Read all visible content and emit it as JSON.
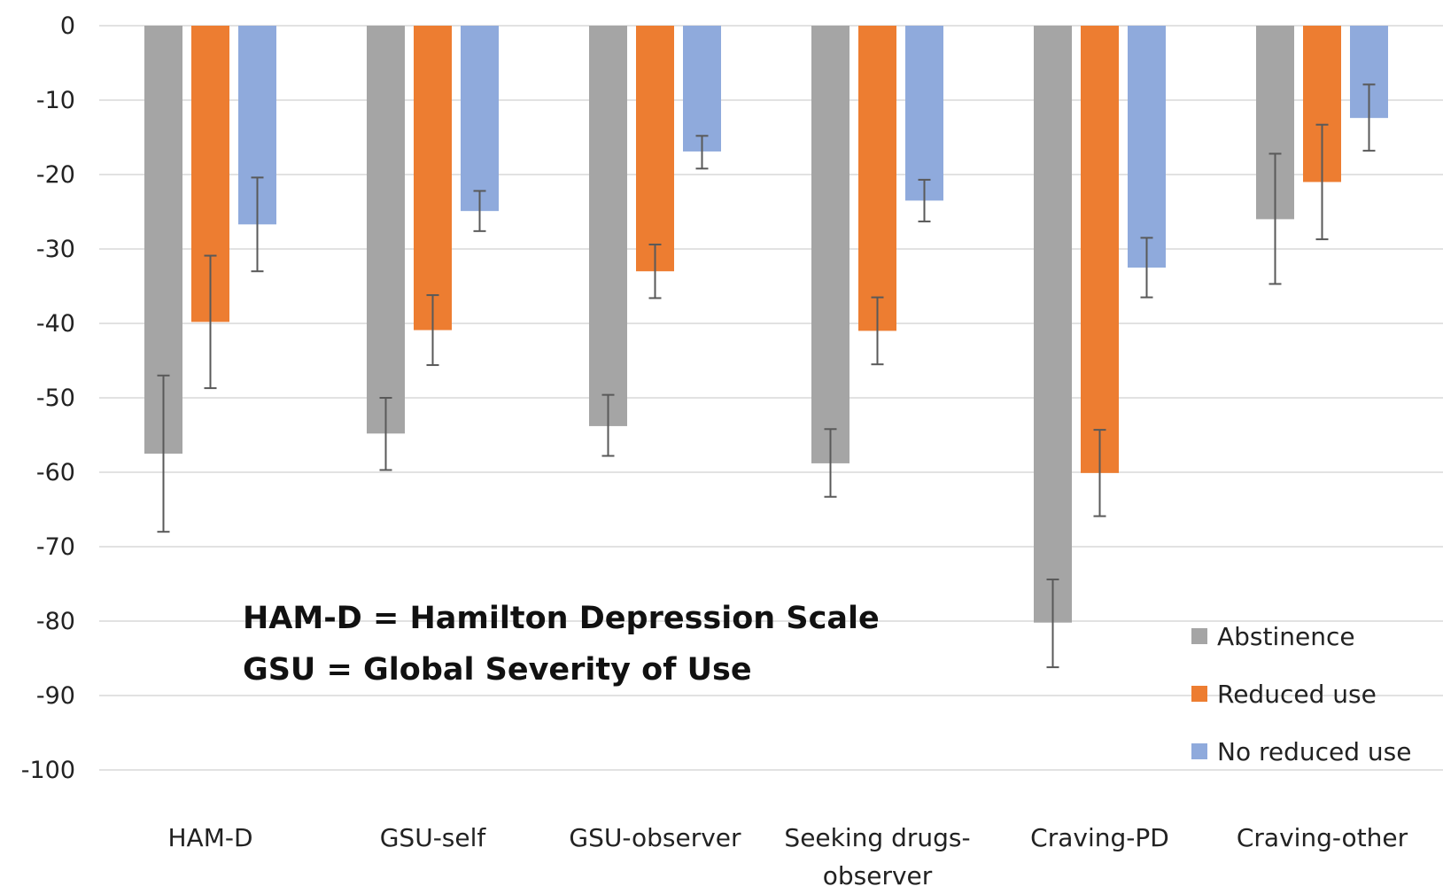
{
  "chart_data": {
    "type": "bar",
    "title": "",
    "xlabel": "",
    "ylabel": "",
    "ylim": [
      -100,
      0
    ],
    "yticks": [
      0,
      -10,
      -20,
      -30,
      -40,
      -50,
      -60,
      -70,
      -80,
      -90,
      -100
    ],
    "ytick_labels": [
      "0",
      "-10",
      "-20",
      "-30",
      "-40",
      "-50",
      "-60",
      "-70",
      "-80",
      "-90",
      "-100"
    ],
    "grid": true,
    "legend_position": "bottom-right",
    "categories": [
      [
        "HAM-D"
      ],
      [
        "GSU-self"
      ],
      [
        "GSU-observer"
      ],
      [
        "Seeking drugs-",
        "observer"
      ],
      [
        "Craving-PD"
      ],
      [
        "Craving-other"
      ]
    ],
    "series": [
      {
        "name": "Abstinence",
        "color": "#a5a5a5",
        "values": [
          -57.5,
          -54.8,
          -53.8,
          -58.8,
          -80.2,
          -26.0
        ],
        "error_low": [
          -68.0,
          -59.7,
          -57.8,
          -63.3,
          -86.2,
          -34.7
        ],
        "error_high": [
          -47.0,
          -50.0,
          -49.6,
          -54.2,
          -74.4,
          -17.2
        ]
      },
      {
        "name": "Reduced use",
        "color": "#ed7d31",
        "values": [
          -39.8,
          -40.9,
          -33.0,
          -41.0,
          -60.1,
          -21.0
        ],
        "error_low": [
          -48.7,
          -45.6,
          -36.6,
          -45.5,
          -65.9,
          -28.7
        ],
        "error_high": [
          -30.9,
          -36.2,
          -29.4,
          -36.5,
          -54.3,
          -13.3
        ]
      },
      {
        "name": "No reduced use",
        "color": "#8faadc",
        "values": [
          -26.7,
          -24.9,
          -16.9,
          -23.5,
          -32.5,
          -12.4
        ],
        "error_low": [
          -33.0,
          -27.6,
          -19.2,
          -26.3,
          -36.5,
          -16.8
        ],
        "error_high": [
          -20.4,
          -22.2,
          -14.8,
          -20.7,
          -28.5,
          -7.9
        ]
      }
    ],
    "annotations": [
      "HAM-D = Hamilton Depression Scale",
      "GSU = Global Severity of Use"
    ]
  }
}
